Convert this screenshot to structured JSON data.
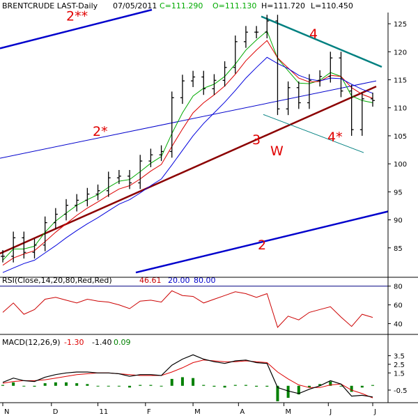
{
  "header": {
    "symbol": "BRENTCRUDE LAST-Daily",
    "date": "07/05/2011",
    "close": "C=111.290",
    "open": "O=111.130",
    "high": "H=111.720",
    "low": "L=110.450"
  },
  "colors": {
    "price": "#000000",
    "ma_fast": "#00aa00",
    "ma_mid": "#dd0000",
    "ma_slow": "#0000dd",
    "thick_trend": "#8b0000",
    "channel_blue": "#0000cc",
    "resistance_teal": "#008080",
    "annotation_red": "#e00000",
    "rsi_line": "#cc0000",
    "rsi_bands": "#000080",
    "macd_line": "#000000",
    "macd_signal": "#dd0000",
    "macd_hist": "#008000",
    "grid": "#000000"
  },
  "chart_data": [
    {
      "type": "line",
      "subtype": "ohlc_bar",
      "title": "BRENTCRUDE LAST-Daily",
      "ylim": [
        80,
        127
      ],
      "yticks": [
        85,
        90,
        95,
        100,
        105,
        110,
        115,
        120,
        125
      ],
      "grid": false,
      "x": [
        "2010-11-01",
        "2010-11-08",
        "2010-11-15",
        "2010-11-22",
        "2010-11-29",
        "2010-12-06",
        "2010-12-13",
        "2010-12-20",
        "2010-12-27",
        "2011-01-03",
        "2011-01-10",
        "2011-01-17",
        "2011-01-24",
        "2011-01-31",
        "2011-02-07",
        "2011-02-14",
        "2011-02-21",
        "2011-02-28",
        "2011-03-07",
        "2011-03-14",
        "2011-03-21",
        "2011-03-28",
        "2011-04-04",
        "2011-04-11",
        "2011-04-18",
        "2011-04-25",
        "2011-05-02",
        "2011-05-09",
        "2011-05-16",
        "2011-05-23",
        "2011-05-30",
        "2011-06-06",
        "2011-06-13",
        "2011-06-20",
        "2011-06-27",
        "2011-07-05"
      ],
      "series": [
        {
          "values": [
            83.5,
            86.8,
            84.2,
            85.5,
            89.5,
            91.0,
            92.6,
            93.5,
            94.6,
            95.2,
            97.5,
            97.8,
            96.6,
            100.5,
            101.6,
            102.2,
            111.8,
            114.8,
            115.5,
            113.4,
            114.9,
            117.2,
            121.8,
            123.5,
            123.5,
            125.5,
            109.8,
            113.6,
            110.9,
            114.9,
            115.6,
            118.9,
            113.0,
            106.1,
            111.6,
            111.3
          ]
        },
        {
          "values": [
            82.8,
            84.8,
            84.8,
            85.3,
            87.8,
            89.8,
            91.2,
            92.6,
            93.6,
            94.5,
            95.8,
            96.9,
            97.2,
            98.6,
            100.1,
            101.3,
            105.4,
            109.1,
            112.1,
            113.5,
            114.2,
            115.6,
            117.8,
            120.3,
            122.1,
            123.7,
            118.8,
            116.6,
            114.4,
            114.3,
            114.9,
            116.3,
            115.6,
            112.1,
            111.3,
            110.9
          ]
        },
        {
          "values": [
            81.9,
            83.2,
            83.9,
            84.5,
            86.1,
            87.8,
            89.3,
            90.8,
            92.1,
            93.2,
            94.4,
            95.5,
            96.1,
            97.3,
            98.7,
            99.9,
            103.1,
            106.2,
            109.1,
            110.9,
            112.3,
            113.9,
            116.0,
            118.4,
            120.3,
            122.0,
            118.9,
            117.1,
            115.3,
            114.6,
            114.7,
            115.8,
            115.6,
            113.6,
            112.4,
            111.7
          ]
        },
        {
          "values": [
            80.6,
            81.4,
            82.2,
            82.8,
            84.1,
            85.4,
            86.8,
            88.1,
            89.3,
            90.4,
            91.6,
            92.8,
            93.6,
            94.8,
            96.1,
            97.3,
            99.8,
            102.4,
            105.0,
            107.2,
            109.1,
            111.0,
            113.1,
            115.3,
            117.2,
            119.0,
            117.9,
            117.0,
            115.8,
            115.1,
            114.8,
            115.3,
            115.2,
            114.2,
            113.3,
            112.6
          ]
        }
      ],
      "annotations": [
        "2**",
        "2*",
        "2",
        "3",
        "4",
        "4*",
        "W"
      ]
    },
    {
      "type": "line",
      "title": "RSI(Close,14,20,80,Red,Red)",
      "legend": [
        "46.61",
        "20.00",
        "80.00"
      ],
      "ylim": [
        30,
        82
      ],
      "yticks": [
        40,
        60,
        80
      ],
      "series": [
        {
          "values": [
            52,
            62,
            50,
            55,
            66,
            68,
            65,
            62,
            66,
            64,
            63,
            60,
            56,
            64,
            65,
            63,
            75,
            70,
            69,
            62,
            66,
            70,
            74,
            72,
            68,
            72,
            36,
            48,
            44,
            52,
            55,
            58,
            47,
            37,
            50,
            46.61
          ]
        },
        {
          "values": [
            20,
            20,
            20,
            20,
            20,
            20,
            20,
            20,
            20,
            20,
            20,
            20,
            20,
            20,
            20,
            20,
            20,
            20,
            20,
            20,
            20,
            20,
            20,
            20,
            20,
            20,
            20,
            20,
            20,
            20,
            20,
            20,
            20,
            20,
            20,
            20
          ]
        },
        {
          "values": [
            80,
            80,
            80,
            80,
            80,
            80,
            80,
            80,
            80,
            80,
            80,
            80,
            80,
            80,
            80,
            80,
            80,
            80,
            80,
            80,
            80,
            80,
            80,
            80,
            80,
            80,
            80,
            80,
            80,
            80,
            80,
            80,
            80,
            80,
            80,
            80
          ]
        }
      ]
    },
    {
      "type": "line",
      "title": "MACD(12,26,9)",
      "legend": [
        "-1.30",
        "-1.40",
        "0.09"
      ],
      "ylim": [
        -1.8,
        4.6
      ],
      "yticks": [
        -0.5,
        1.5,
        2.5,
        3.5
      ],
      "series": [
        {
          "values": [
            0.4,
            0.9,
            0.6,
            0.5,
            1.0,
            1.3,
            1.5,
            1.6,
            1.6,
            1.5,
            1.5,
            1.4,
            1.1,
            1.3,
            1.3,
            1.2,
            2.4,
            3.1,
            3.6,
            3.1,
            2.8,
            2.6,
            2.9,
            3.0,
            2.7,
            2.6,
            -0.2,
            -0.6,
            -0.9,
            -0.4,
            0.0,
            0.6,
            0.2,
            -1.2,
            -1.1,
            -1.3
          ]
        },
        {
          "values": [
            0.3,
            0.5,
            0.6,
            0.6,
            0.7,
            0.9,
            1.1,
            1.3,
            1.4,
            1.5,
            1.5,
            1.4,
            1.3,
            1.2,
            1.2,
            1.2,
            1.6,
            2.1,
            2.7,
            3.0,
            2.9,
            2.8,
            2.8,
            2.9,
            2.8,
            2.7,
            1.6,
            0.8,
            0.1,
            -0.2,
            -0.2,
            0.1,
            0.2,
            -0.5,
            -0.9,
            -1.4
          ]
        },
        {
          "values": [
            0.1,
            0.4,
            0.0,
            -0.1,
            0.3,
            0.4,
            0.4,
            0.3,
            0.2,
            0.0,
            0.0,
            0.0,
            -0.2,
            0.1,
            0.1,
            0.0,
            0.8,
            1.0,
            0.9,
            0.1,
            -0.1,
            -0.2,
            0.1,
            0.1,
            -0.1,
            -0.1,
            -1.8,
            -1.4,
            -1.0,
            -0.2,
            0.2,
            0.5,
            0.0,
            -0.7,
            -0.2,
            0.09
          ]
        }
      ]
    }
  ],
  "x_axis": {
    "labels": [
      "N",
      "D",
      "11",
      "F",
      "M",
      "A",
      "M",
      "J",
      "J"
    ]
  }
}
